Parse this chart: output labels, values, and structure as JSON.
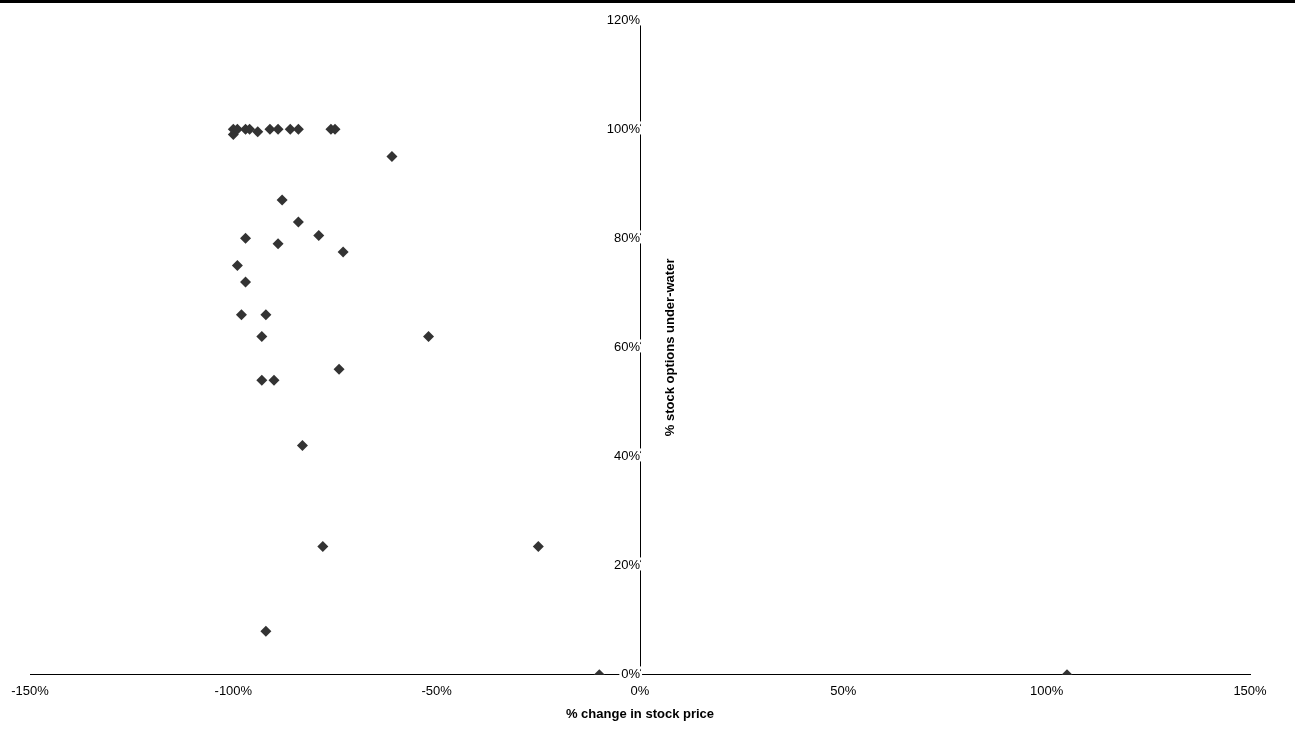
{
  "chart_data": {
    "type": "scatter",
    "xlabel": "% change in stock price",
    "ylabel": "% stock options under-water",
    "marker": "diamond",
    "grid": false,
    "xlim": [
      -150,
      150
    ],
    "xticks": [
      {
        "value": -150,
        "label": "-150%"
      },
      {
        "value": -100,
        "label": "-100%"
      },
      {
        "value": -50,
        "label": "-50%"
      },
      {
        "value": 0,
        "label": "0%"
      },
      {
        "value": 50,
        "label": "50%"
      },
      {
        "value": 100,
        "label": "100%"
      },
      {
        "value": 150,
        "label": "150%"
      }
    ],
    "ylim": [
      0,
      120
    ],
    "yticks": [
      {
        "value": 0,
        "label": "0%"
      },
      {
        "value": 20,
        "label": "20%"
      },
      {
        "value": 40,
        "label": "40%"
      },
      {
        "value": 60,
        "label": "60%"
      },
      {
        "value": 80,
        "label": "80%"
      },
      {
        "value": 100,
        "label": "100%"
      },
      {
        "value": 120,
        "label": "120%"
      }
    ],
    "series": [
      {
        "color": "#333333",
        "x": [
          -100,
          -100,
          -99,
          -97,
          -96,
          -94,
          -91,
          -89,
          -86,
          -84,
          -76,
          -75,
          -61,
          -88,
          -84,
          -97,
          -89,
          -79,
          -73,
          -99,
          -97,
          -98,
          -92,
          -93,
          -52,
          -93,
          -90,
          -74,
          -83,
          -78,
          -25,
          -92,
          -10,
          105
        ],
        "values": [
          99,
          100,
          100,
          100,
          100,
          99.5,
          100,
          100,
          100,
          100,
          100,
          100,
          95,
          87,
          83,
          80,
          79,
          80.5,
          77.5,
          75,
          72,
          66,
          66,
          62,
          62,
          54,
          54,
          56,
          42,
          23.5,
          23.5,
          8,
          0,
          0
        ]
      }
    ]
  }
}
